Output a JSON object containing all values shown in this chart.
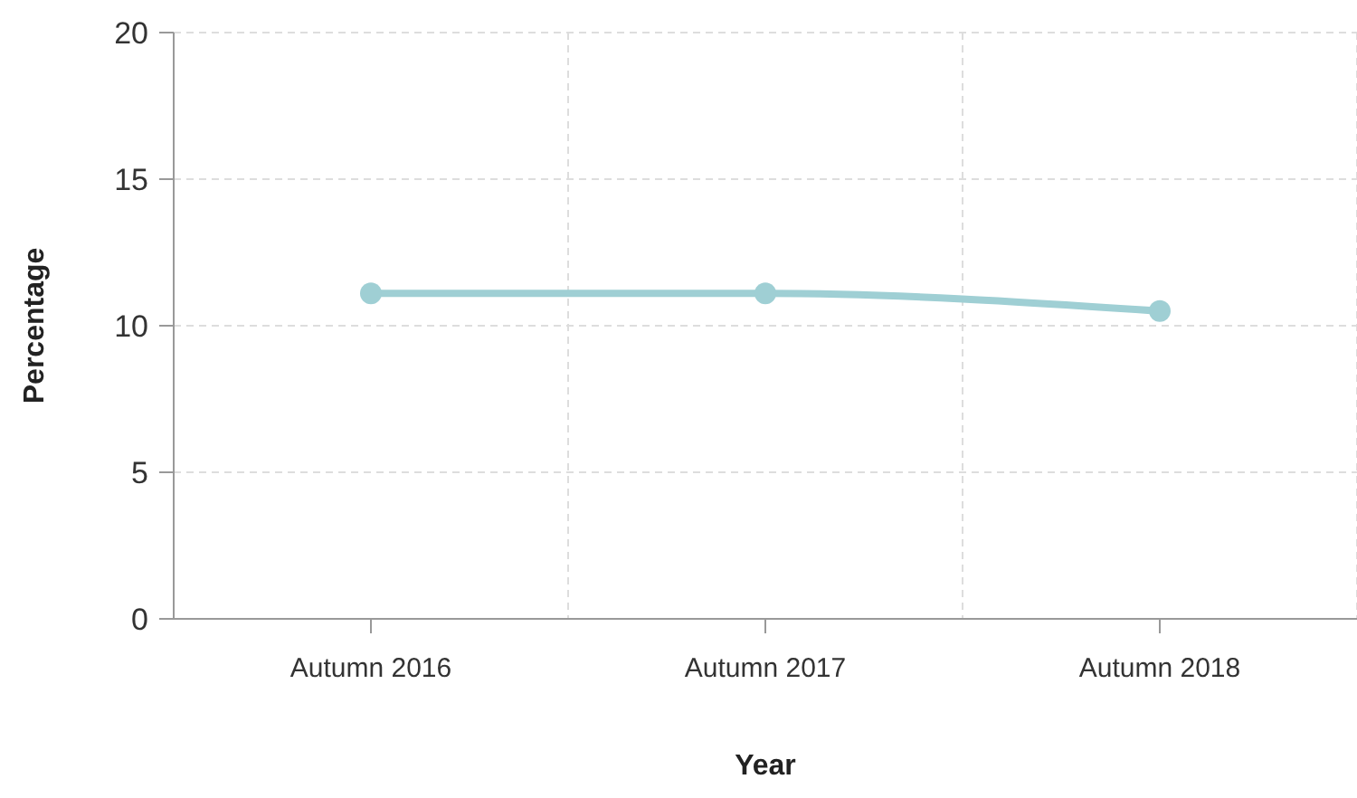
{
  "chart_data": {
    "type": "line",
    "xlabel": "Year",
    "ylabel": "Percentage",
    "categories": [
      "Autumn 2016",
      "Autumn 2017",
      "Autumn 2018"
    ],
    "series": [
      {
        "color": "#9fcfd4",
        "values": [
          11.1,
          11.1,
          10.5
        ]
      }
    ],
    "ylim": [
      0,
      20
    ],
    "yticks": [
      0,
      5,
      10,
      15,
      20
    ],
    "grid": true,
    "marker": "circle",
    "line_style": "solid"
  }
}
